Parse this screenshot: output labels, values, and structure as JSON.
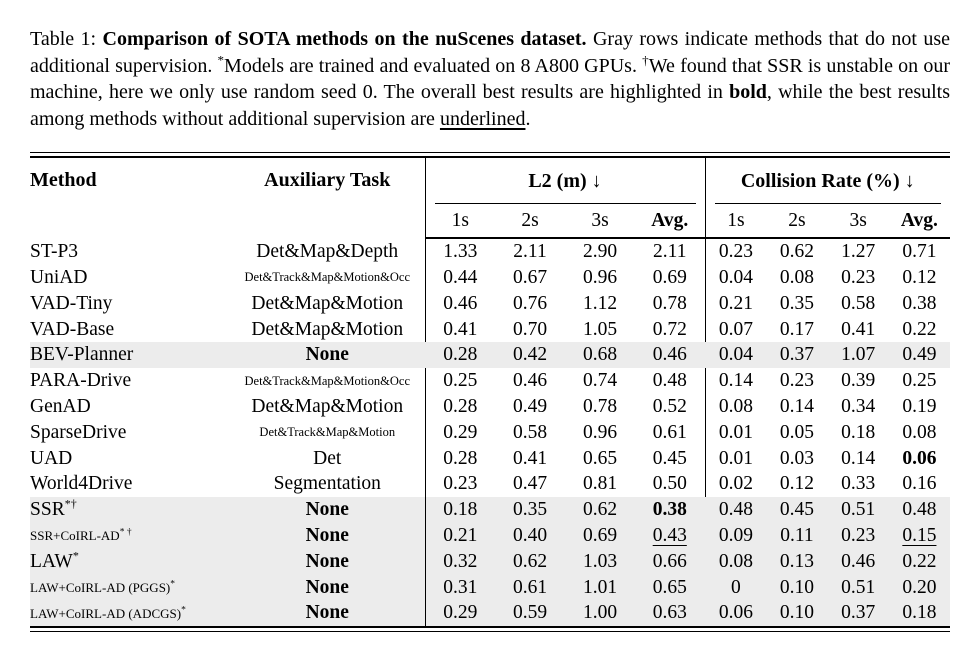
{
  "caption": {
    "segments": [
      {
        "t": "Table 1: "
      },
      {
        "t": "Comparison of SOTA methods on the nuScenes dataset.",
        "s": "bold"
      },
      {
        "t": " Gray rows indicate methods that do not use additional supervision. "
      },
      {
        "t": "*",
        "s": "sup"
      },
      {
        "t": "Models are trained and evaluated on 8 A800 GPUs. "
      },
      {
        "t": "†",
        "s": "sup"
      },
      {
        "t": "We found that SSR is unstable on our machine, here we only use random seed 0. The overall best results are highlighted in "
      },
      {
        "t": "bold",
        "s": "bold"
      },
      {
        "t": ", while the best results among methods without additional supervision are "
      },
      {
        "t": "underlined",
        "s": "underline"
      },
      {
        "t": "."
      }
    ]
  },
  "table": {
    "headers": {
      "method": "Method",
      "aux": "Auxiliary Task",
      "l2_group": "L2 (m) ↓",
      "collision_group": "Collision Rate (%) ↓",
      "sub": [
        {
          "t": "1s"
        },
        {
          "t": "2s"
        },
        {
          "t": "3s"
        },
        {
          "t": "Avg.",
          "b": true
        }
      ]
    },
    "colors": {
      "gray_row": "#ececec",
      "rule": "#000000"
    },
    "rows": [
      {
        "method": "ST-P3",
        "aux": "Det&Map&Depth",
        "l2": [
          "1.33",
          "2.11",
          "2.90",
          "2.11"
        ],
        "col": [
          "0.23",
          "0.62",
          "1.27",
          "0.71"
        ]
      },
      {
        "method": "UniAD",
        "aux": "Det&Track&Map&Motion&Occ",
        "aux_small": true,
        "l2": [
          "0.44",
          "0.67",
          "0.96",
          "0.69"
        ],
        "col": [
          "0.04",
          "0.08",
          "0.23",
          "0.12"
        ]
      },
      {
        "method": "VAD-Tiny",
        "aux": "Det&Map&Motion",
        "l2": [
          "0.46",
          "0.76",
          "1.12",
          "0.78"
        ],
        "col": [
          "0.21",
          "0.35",
          "0.58",
          "0.38"
        ]
      },
      {
        "method": "VAD-Base",
        "aux": "Det&Map&Motion",
        "l2": [
          "0.41",
          "0.70",
          "1.05",
          "0.72"
        ],
        "col": [
          "0.07",
          "0.17",
          "0.41",
          "0.22"
        ]
      },
      {
        "method": "BEV-Planner",
        "aux": "None",
        "aux_bold": true,
        "gray": true,
        "hide_v1": true,
        "hide_v2": true,
        "l2": [
          "0.28",
          "0.42",
          "0.68",
          "0.46"
        ],
        "col": [
          "0.04",
          "0.37",
          "1.07",
          "0.49"
        ]
      },
      {
        "method": "PARA-Drive",
        "aux": "Det&Track&Map&Motion&Occ",
        "aux_small": true,
        "l2": [
          "0.25",
          "0.46",
          "0.74",
          "0.48"
        ],
        "col": [
          "0.14",
          "0.23",
          "0.39",
          "0.25"
        ]
      },
      {
        "method": "GenAD",
        "aux": "Det&Map&Motion",
        "l2": [
          "0.28",
          "0.49",
          "0.78",
          "0.52"
        ],
        "col": [
          "0.08",
          "0.14",
          "0.34",
          "0.19"
        ]
      },
      {
        "method": "SparseDrive",
        "aux": "Det&Track&Map&Motion",
        "aux_small": true,
        "l2": [
          "0.29",
          "0.58",
          "0.96",
          "0.61"
        ],
        "col": [
          "0.01",
          "0.05",
          "0.18",
          "0.08"
        ]
      },
      {
        "method": "UAD",
        "aux": "Det",
        "l2": [
          "0.28",
          "0.41",
          "0.65",
          "0.45"
        ],
        "col": [
          "0.01",
          "0.03",
          "0.14",
          {
            "v": "0.06",
            "s": "b"
          }
        ]
      },
      {
        "method": "World4Drive",
        "aux": "Segmentation",
        "l2": [
          "0.23",
          "0.47",
          "0.81",
          "0.50"
        ],
        "col": [
          "0.02",
          "0.12",
          "0.33",
          "0.16"
        ]
      },
      {
        "method": "SSR",
        "sup": "*†",
        "aux": "None",
        "aux_bold": true,
        "gray": true,
        "hide_v2": true,
        "l2": [
          "0.18",
          "0.35",
          "0.62",
          {
            "v": "0.38",
            "s": "b"
          }
        ],
        "col": [
          "0.48",
          "0.45",
          "0.51",
          "0.48"
        ]
      },
      {
        "method": "SSR+CoIRL-AD",
        "sup": "* †",
        "method_small": true,
        "aux": "None",
        "aux_bold": true,
        "gray": true,
        "hide_v2": true,
        "l2": [
          "0.21",
          "0.40",
          "0.69",
          {
            "v": "0.43",
            "s": "u"
          }
        ],
        "col": [
          "0.09",
          "0.11",
          "0.23",
          {
            "v": "0.15",
            "s": "u"
          }
        ]
      },
      {
        "method": "LAW",
        "sup": "*",
        "aux": "None",
        "aux_bold": true,
        "gray": true,
        "hide_v2": true,
        "l2": [
          "0.32",
          "0.62",
          "1.03",
          "0.66"
        ],
        "col": [
          "0.08",
          "0.13",
          "0.46",
          "0.22"
        ]
      },
      {
        "method": "LAW+CoIRL-AD (PGGS)",
        "sup": "*",
        "method_small": true,
        "aux": "None",
        "aux_bold": true,
        "gray": true,
        "hide_v2": true,
        "l2": [
          "0.31",
          "0.61",
          "1.01",
          "0.65"
        ],
        "col": [
          "0",
          "0.10",
          "0.51",
          "0.20"
        ]
      },
      {
        "method": "LAW+CoIRL-AD (ADCGS)",
        "sup": "*",
        "method_small": true,
        "aux": "None",
        "aux_bold": true,
        "gray": true,
        "hide_v2": true,
        "l2": [
          "0.29",
          "0.59",
          "1.00",
          "0.63"
        ],
        "col": [
          "0.06",
          "0.10",
          "0.37",
          "0.18"
        ]
      }
    ]
  }
}
